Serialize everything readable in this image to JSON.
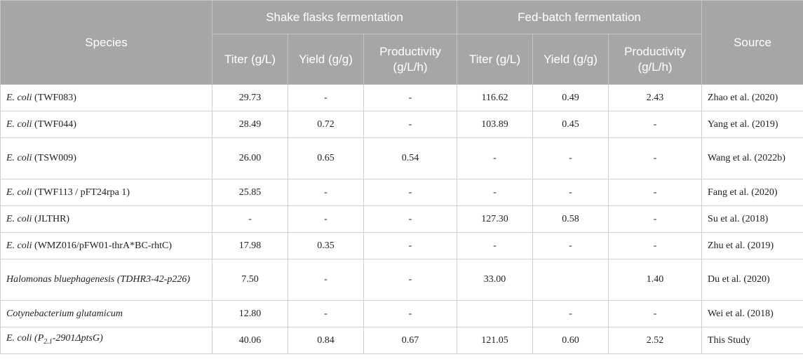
{
  "header": {
    "species": "Species",
    "shake": "Shake flasks fermentation",
    "fed": "Fed-batch fermentation",
    "source": "Source",
    "titer": "Titer (g/L)",
    "yield": "Yield (g/g)",
    "productivity": "Productivity (g/L/h)"
  },
  "rows": [
    {
      "species_italic": "E. coli",
      "species_rest": " (TWF083)",
      "s_titer": "29.73",
      "s_yield": "-",
      "s_prod": "-",
      "f_titer": "116.62",
      "f_yield": "0.49",
      "f_prod": "2.43",
      "source": "Zhao et al. (2020)"
    },
    {
      "species_italic": "E. coli",
      "species_rest": " (TWF044)",
      "s_titer": "28.49",
      "s_yield": "0.72",
      "s_prod": "-",
      "f_titer": "103.89",
      "f_yield": "0.45",
      "f_prod": "-",
      "source": "Yang et al. (2019)"
    },
    {
      "species_italic": "E. coli",
      "species_rest": " (TSW009)",
      "s_titer": "26.00",
      "s_yield": "0.65",
      "s_prod": "0.54",
      "f_titer": "-",
      "f_yield": "-",
      "f_prod": "-",
      "source": "Wang et al. (2022b)"
    },
    {
      "species_italic": "E. coli",
      "species_rest": " (TWF113 / pFT24rpa 1)",
      "s_titer": "25.85",
      "s_yield": "-",
      "s_prod": "-",
      "f_titer": "-",
      "f_yield": "-",
      "f_prod": "-",
      "source": "Fang et al. (2020)"
    },
    {
      "species_italic": "E. coli",
      "species_rest": " (JLTHR)",
      "s_titer": "-",
      "s_yield": "-",
      "s_prod": "-",
      "f_titer": "127.30",
      "f_yield": "0.58",
      "f_prod": "-",
      "source": "Su et al. (2018)"
    },
    {
      "species_italic": "E. coli",
      "species_rest": " (WMZ016/pFW01-thrA*BC-rhtC)",
      "s_titer": "17.98",
      "s_yield": "0.35",
      "s_prod": "-",
      "f_titer": "-",
      "f_yield": "-",
      "f_prod": "-",
      "source": "Zhu et al. (2019)"
    },
    {
      "species_italic": "Halomonas bluephagenesis (TDHR3-42-p226)",
      "species_rest": "",
      "s_titer": "7.50",
      "s_yield": "-",
      "s_prod": "-",
      "f_titer": "33.00",
      "f_yield": "",
      "f_prod": "1.40",
      "source": "Du et al. (2020)"
    },
    {
      "species_italic": "Cotynebacterium glutamicum",
      "species_rest": "",
      "s_titer": "12.80",
      "s_yield": "-",
      "s_prod": "-",
      "f_titer": "",
      "f_yield": "-",
      "f_prod": "-",
      "source": "Wei et al. (2018)"
    },
    {
      "species_italic": "E. coli",
      "species_rest": " (P",
      "species_sub": "2.1",
      "species_tail": "-2901ΔptsG)",
      "s_titer": "40.06",
      "s_yield": "0.84",
      "s_prod": "0.67",
      "f_titer": "121.05",
      "f_yield": "0.60",
      "f_prod": "2.52",
      "source": "This Study"
    }
  ]
}
